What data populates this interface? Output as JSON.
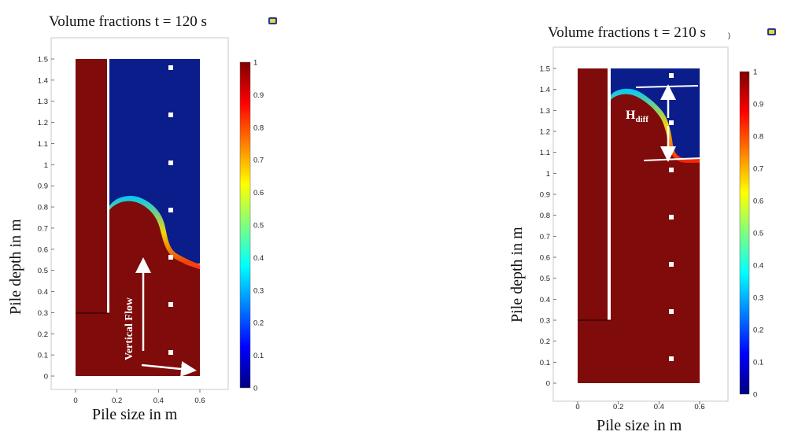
{
  "panels": [
    {
      "title": "Volume fractions  t = 120 s",
      "xlabel": "Pile size in m",
      "ylabel": "Pile depth in m",
      "x_ticks": [
        "0",
        "0.2",
        "0.4",
        "0.6"
      ],
      "y_ticks": [
        "1.5",
        "1.4",
        "1.3",
        "1.2",
        "1.1",
        "1",
        "0.9",
        "0.8",
        "0.7",
        "0.6",
        "0.5",
        "0.4",
        "0.3",
        "0.2",
        "0.1",
        "0"
      ],
      "colorbar_ticks": [
        "1",
        "0.9",
        "0.8",
        "0.7",
        "0.6",
        "0.5",
        "0.4",
        "0.3",
        "0.2",
        "0.1",
        "0"
      ],
      "annotation": "Vertical Flow"
    },
    {
      "title": "Volume fractions t = 210 s",
      "title_suffix": ")",
      "xlabel": "Pile size in m",
      "ylabel": "Pile depth in m",
      "x_ticks": [
        "0",
        "0.2",
        "0.4",
        "0.6"
      ],
      "y_ticks": [
        "1.5",
        "1.4",
        "1.3",
        "1.2",
        "1.1",
        "1",
        "0.9",
        "0.8",
        "0.7",
        "0.6",
        "0.5",
        "0.4",
        "0.3",
        "0.2",
        "0.1",
        "0"
      ],
      "colorbar_ticks": [
        "1",
        "0.9",
        "0.8",
        "0.7",
        "0.6",
        "0.5",
        "0.4",
        "0.3",
        "0.2",
        "0.1",
        "0"
      ],
      "annotation_main": "H",
      "annotation_sub": "diff"
    }
  ],
  "colors": {
    "fluid_high": "#7f0b0b",
    "fluid_low": "#0a1d8a",
    "marker": "#ffffff"
  }
}
